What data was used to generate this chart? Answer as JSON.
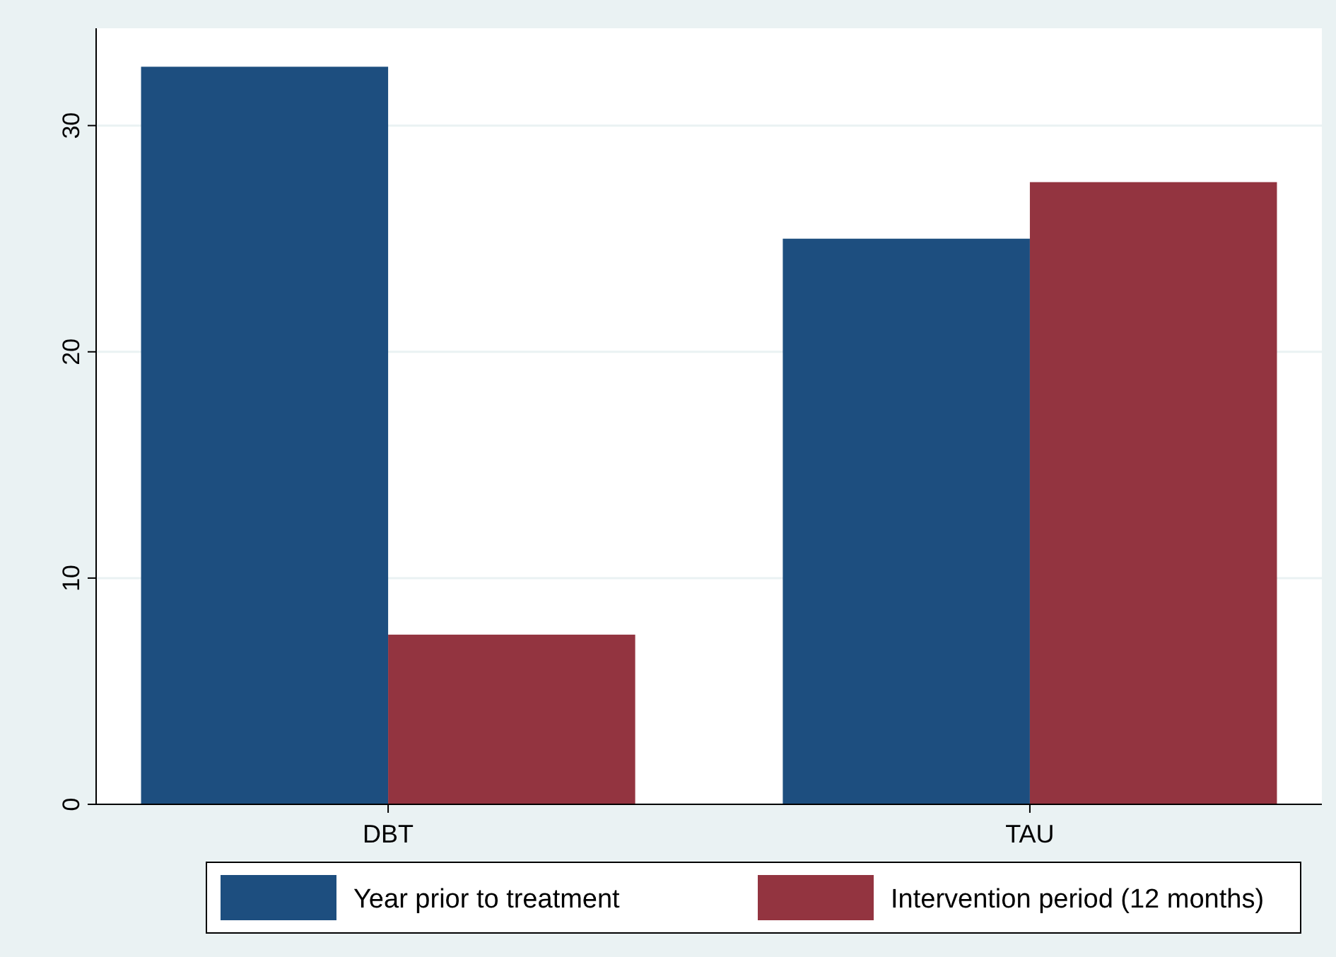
{
  "chart_data": {
    "type": "bar",
    "categories": [
      "DBT",
      "TAU"
    ],
    "series": [
      {
        "name": "Year prior to treatment",
        "color": "#1d4e7f",
        "values": [
          32.6,
          25
        ]
      },
      {
        "name": "Intervention period (12 months)",
        "color": "#933440",
        "values": [
          7.5,
          27.5
        ]
      }
    ],
    "ylim": [
      0,
      34.3
    ],
    "yticks": [
      0,
      10,
      20,
      30
    ],
    "grid": "y",
    "legend": "bottom"
  }
}
